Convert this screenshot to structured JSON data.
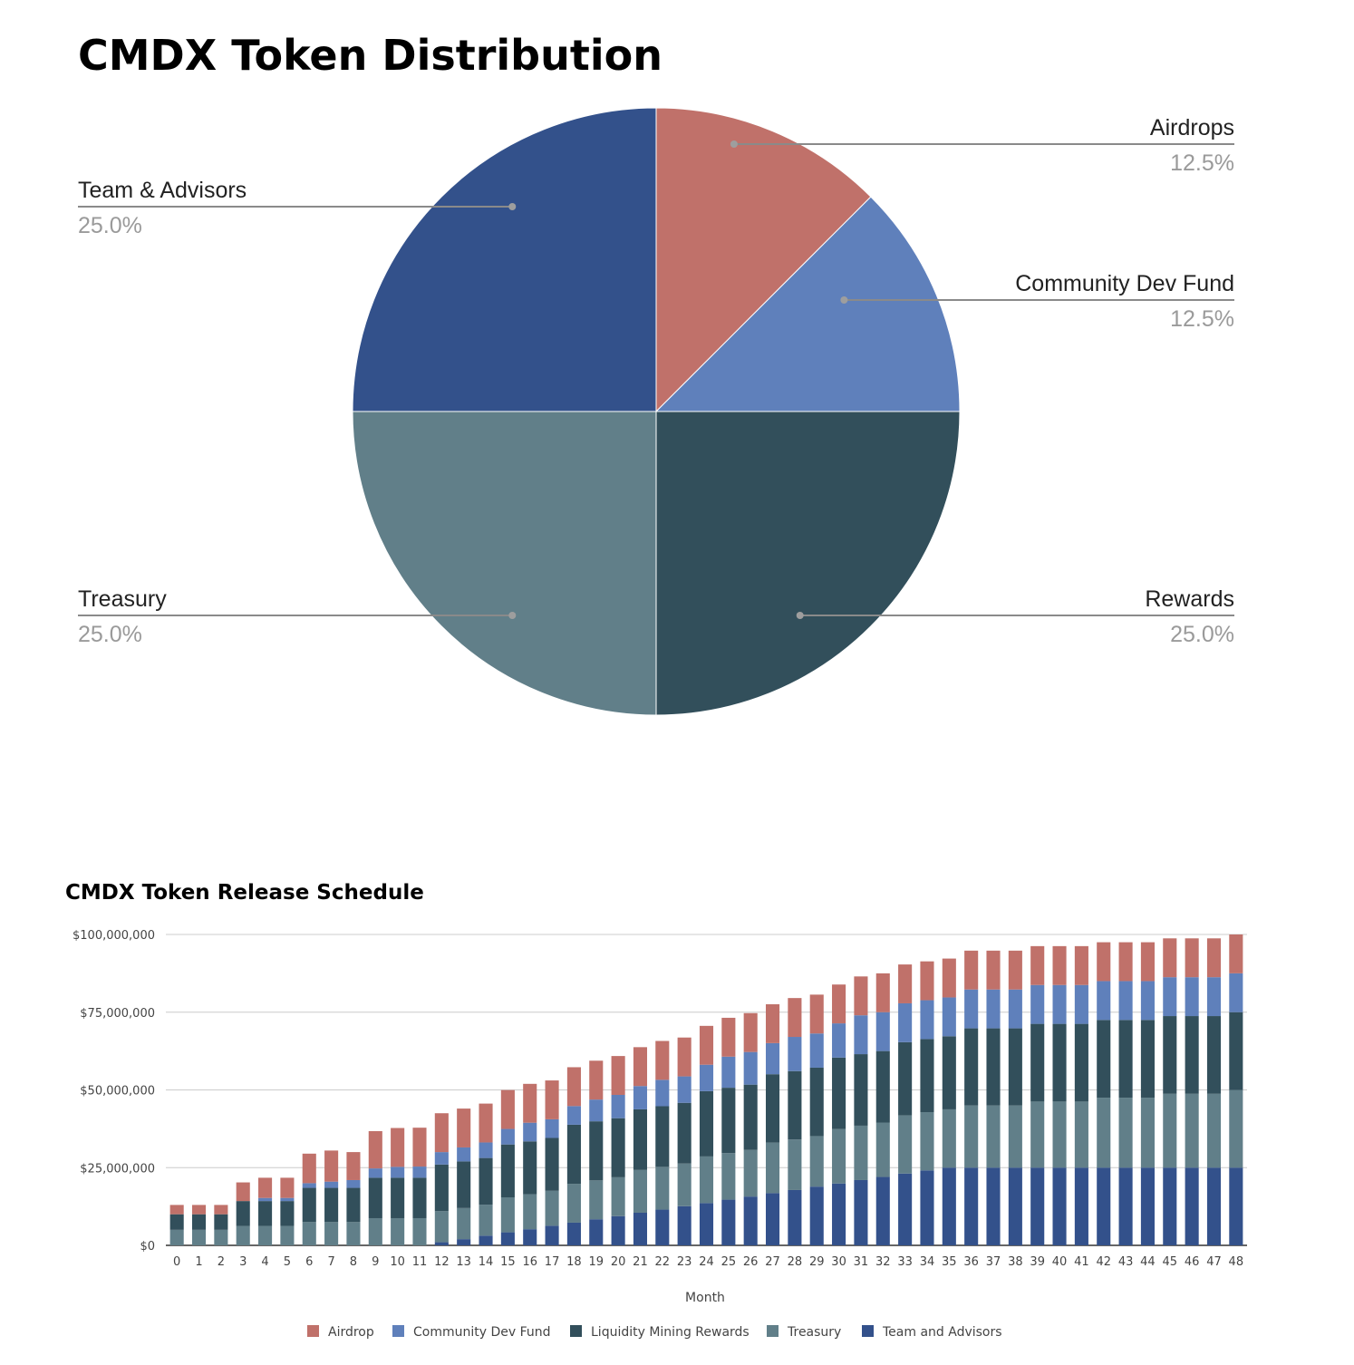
{
  "chart_data": [
    {
      "type": "pie",
      "title": "CMDX Token Distribution",
      "slices": [
        {
          "label": "Airdrops",
          "value": 12.5,
          "display": "12.5%",
          "color": "#c0716a"
        },
        {
          "label": "Community Dev Fund",
          "value": 12.5,
          "display": "12.5%",
          "color": "#5f80bb"
        },
        {
          "label": "Rewards",
          "value": 25.0,
          "display": "25.0%",
          "color": "#324f5b"
        },
        {
          "label": "Treasury",
          "value": 25.0,
          "display": "25.0%",
          "color": "#617f89"
        },
        {
          "label": "Team & Advisors",
          "value": 25.0,
          "display": "25.0%",
          "color": "#33518b"
        }
      ]
    },
    {
      "type": "bar",
      "stacked": true,
      "title": "CMDX Token Release Schedule",
      "xlabel": "Month",
      "ylabel": "",
      "ylim": [
        0,
        100000000
      ],
      "yticks": [
        0,
        25000000,
        50000000,
        75000000,
        100000000
      ],
      "ytick_labels": [
        "$0",
        "$25,000,000",
        "$50,000,000",
        "$75,000,000",
        "$100,000,000"
      ],
      "categories": [
        "0",
        "1",
        "2",
        "3",
        "4",
        "5",
        "6",
        "7",
        "8",
        "9",
        "10",
        "11",
        "12",
        "13",
        "14",
        "15",
        "16",
        "17",
        "18",
        "19",
        "20",
        "21",
        "22",
        "23",
        "24",
        "25",
        "26",
        "27",
        "28",
        "29",
        "30",
        "31",
        "32",
        "33",
        "34",
        "35",
        "36",
        "37",
        "38",
        "39",
        "40",
        "41",
        "42",
        "43",
        "44",
        "45",
        "46",
        "47",
        "48"
      ],
      "series": [
        {
          "name": "Team and Advisors",
          "color": "#33518b",
          "values": [
            0,
            0,
            0,
            0,
            0,
            0,
            0,
            0,
            0,
            0,
            0,
            0,
            1000000,
            2000000,
            3100000,
            4200000,
            5200000,
            6300000,
            7300000,
            8400000,
            9400000,
            10500000,
            11500000,
            12600000,
            13600000,
            14700000,
            15700000,
            16800000,
            17800000,
            18900000,
            19900000,
            21000000,
            22000000,
            23100000,
            24100000,
            25000000,
            25000000,
            25000000,
            25000000,
            25000000,
            25000000,
            25000000,
            25000000,
            25000000,
            25000000,
            25000000,
            25000000,
            25000000,
            25000000
          ]
        },
        {
          "name": "Treasury",
          "color": "#617f89",
          "values": [
            5000000,
            5000000,
            5000000,
            6250000,
            6250000,
            6250000,
            7500000,
            7500000,
            7500000,
            8750000,
            8750000,
            8750000,
            10000000,
            10000000,
            10000000,
            11250000,
            11250000,
            11250000,
            12500000,
            12500000,
            12500000,
            13750000,
            13750000,
            13750000,
            15000000,
            15000000,
            15000000,
            16250000,
            16250000,
            16250000,
            17500000,
            17500000,
            17500000,
            18750000,
            18750000,
            18750000,
            20000000,
            20000000,
            20000000,
            21250000,
            21250000,
            21250000,
            22500000,
            22500000,
            22500000,
            23750000,
            23750000,
            23750000,
            25000000
          ]
        },
        {
          "name": "Liquidity Mining Rewards",
          "color": "#324f5b",
          "values": [
            5000000,
            5000000,
            5000000,
            8000000,
            8000000,
            8000000,
            11000000,
            11000000,
            11000000,
            13000000,
            13000000,
            13000000,
            15000000,
            15000000,
            15000000,
            17000000,
            17000000,
            17000000,
            19000000,
            19000000,
            19000000,
            19500000,
            19500000,
            19500000,
            21000000,
            21000000,
            21000000,
            22000000,
            22000000,
            22000000,
            23000000,
            23000000,
            23000000,
            23500000,
            23500000,
            23500000,
            24800000,
            24800000,
            24800000,
            25000000,
            25000000,
            25000000,
            25000000,
            25000000,
            25000000,
            25000000,
            25000000,
            25000000,
            25000000
          ]
        },
        {
          "name": "Community Dev Fund",
          "color": "#5f80bb",
          "values": [
            0,
            0,
            0,
            0,
            1000000,
            1000000,
            1500000,
            2000000,
            2500000,
            3000000,
            3500000,
            3600000,
            4000000,
            4500000,
            5000000,
            5000000,
            6000000,
            6000000,
            6000000,
            7000000,
            7500000,
            7500000,
            8500000,
            8500000,
            8500000,
            10000000,
            10500000,
            10000000,
            11000000,
            11000000,
            11000000,
            12500000,
            12500000,
            12500000,
            12500000,
            12500000,
            12500000,
            12500000,
            12500000,
            12500000,
            12500000,
            12500000,
            12500000,
            12500000,
            12500000,
            12500000,
            12500000,
            12500000,
            12500000
          ]
        },
        {
          "name": "Airdrop",
          "color": "#c0716a",
          "values": [
            3000000,
            3000000,
            3000000,
            6000000,
            6500000,
            6500000,
            9500000,
            10000000,
            9000000,
            12000000,
            12500000,
            12500000,
            12500000,
            12500000,
            12500000,
            12500000,
            12500000,
            12500000,
            12500000,
            12500000,
            12500000,
            12500000,
            12500000,
            12500000,
            12500000,
            12500000,
            12500000,
            12500000,
            12500000,
            12500000,
            12500000,
            12500000,
            12500000,
            12500000,
            12500000,
            12500000,
            12500000,
            12500000,
            12500000,
            12500000,
            12500000,
            12500000,
            12500000,
            12500000,
            12500000,
            12500000,
            12500000,
            12500000,
            12500000
          ]
        }
      ],
      "legend_order": [
        "Airdrop",
        "Community Dev Fund",
        "Liquidity Mining Rewards",
        "Treasury",
        "Team and Advisors"
      ],
      "legend_position": "bottom",
      "grid": true
    }
  ]
}
